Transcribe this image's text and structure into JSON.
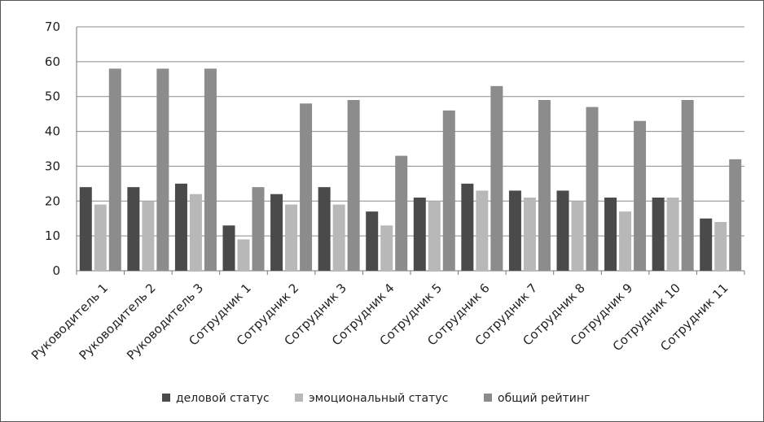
{
  "chart_data": {
    "type": "bar",
    "title": "",
    "xlabel": "",
    "ylabel": "",
    "ylim": [
      0,
      70
    ],
    "yticks": [
      0,
      10,
      20,
      30,
      40,
      50,
      60,
      70
    ],
    "grid": true,
    "legend_position": "bottom",
    "categories": [
      "Руководитель 1",
      "Руководитель 2",
      "Руководитель 3",
      "Сотрудник 1",
      "Сотрудник 2",
      "Сотрудник 3",
      "Сотрудник 4",
      "Сотрудник 5",
      "Сотрудник 6",
      "Сотрудник 7",
      "Сотрудник 8",
      "Сотрудник 9",
      "Сотрудник 10",
      "Сотрудник 11"
    ],
    "series": [
      {
        "name": "деловой статус",
        "color": "#4a4a4a",
        "values": [
          24,
          24,
          25,
          13,
          22,
          24,
          17,
          21,
          25,
          23,
          23,
          21,
          21,
          15
        ]
      },
      {
        "name": "эмоциональный статус",
        "color": "#b8b8b8",
        "values": [
          19,
          20,
          22,
          9,
          19,
          19,
          13,
          20,
          23,
          21,
          20,
          17,
          21,
          14
        ]
      },
      {
        "name": "общий рейтинг",
        "color": "#8c8c8c",
        "values": [
          58,
          58,
          58,
          24,
          48,
          49,
          33,
          46,
          53,
          49,
          47,
          43,
          49,
          32
        ]
      }
    ]
  }
}
